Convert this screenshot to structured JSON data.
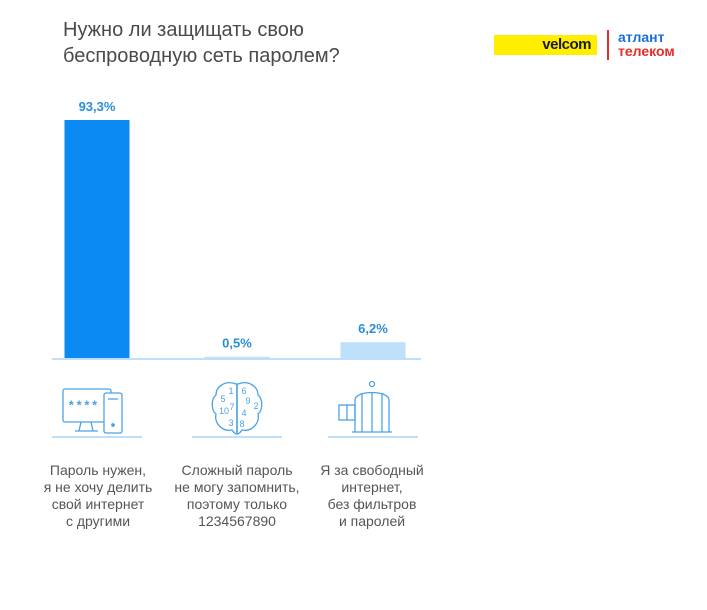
{
  "title": {
    "line1": "Нужно ли защищать свою",
    "line2": "беспроводную сеть паролем?"
  },
  "logos": {
    "velcom": "velcom",
    "atlant_line1": "атлант",
    "atlant_line2": "телеком"
  },
  "colors": {
    "bar_primary": "#0a8af2",
    "bar_light": "#bfe0fb",
    "axis": "#a9d4f7",
    "label": "#2a8fd8",
    "icon": "#4aa3e6"
  },
  "icons": [
    "computer-password-icon",
    "brain-numbers-icon",
    "birdcage-icon"
  ],
  "brain_digits": [
    "1",
    "6",
    "5",
    "9",
    "7",
    "2",
    "10",
    "4",
    "3",
    "8"
  ],
  "monitor_text": "****",
  "chart_data": {
    "type": "bar",
    "title": "Нужно ли защищать свою беспроводную сеть паролем?",
    "categories": [
      [
        "Пароль нужен,",
        "я не хочу делить",
        "свой интернет",
        "с другими"
      ],
      [
        "Сложный пароль",
        "не могу запомнить,",
        "поэтому только",
        "1234567890"
      ],
      [
        "Я за свободный",
        "интернет,",
        "без фильтров",
        "и паролей"
      ]
    ],
    "values": [
      93.3,
      0.5,
      6.2
    ],
    "value_labels": [
      "93,3%",
      "0,5%",
      "6,2%"
    ],
    "ylim": [
      0,
      93.3
    ],
    "grid": false,
    "legend": "none"
  }
}
